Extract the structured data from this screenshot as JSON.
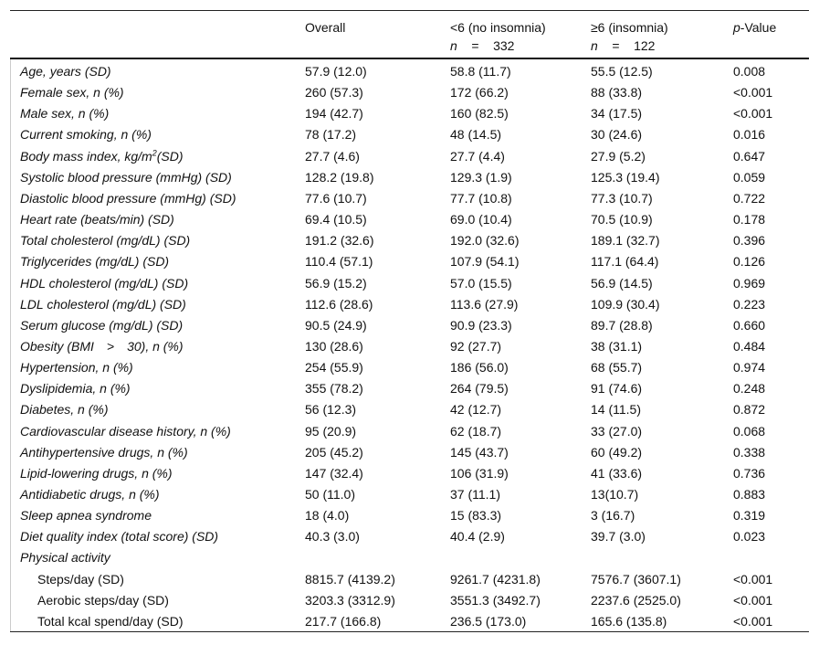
{
  "header": {
    "columns": [
      {
        "line1": "Overall",
        "line2": ""
      },
      {
        "line1": "<6 (no insomnia)",
        "n_label": "n",
        "eq": "=",
        "n_value": "332"
      },
      {
        "line1": "≥6 (insomnia)",
        "n_label": "n",
        "eq": "=",
        "n_value": "122"
      },
      {
        "line1_italic": "p",
        "line1": "-Value"
      }
    ]
  },
  "rows": [
    {
      "label": "Age, years (SD)",
      "values": [
        "57.9 (12.0)",
        "58.8 (11.7)",
        "55.5 (12.5)",
        "0.008"
      ]
    },
    {
      "label": "Female sex, n (%)",
      "values": [
        "260 (57.3)",
        "172 (66.2)",
        "88 (33.8)",
        "<0.001"
      ]
    },
    {
      "label": "Male sex, n (%)",
      "values": [
        "194 (42.7)",
        "160 (82.5)",
        "34 (17.5)",
        "<0.001"
      ]
    },
    {
      "label": "Current smoking, n (%)",
      "values": [
        "78 (17.2)",
        "48 (14.5)",
        "30 (24.6)",
        "0.016"
      ]
    },
    {
      "label": "Body mass index, kg/m",
      "sup": "2",
      "label_suffix": "(SD)",
      "values": [
        "27.7 (4.6)",
        "27.7 (4.4)",
        "27.9 (5.2)",
        "0.647"
      ]
    },
    {
      "label": "Systolic blood pressure (mmHg) (SD)",
      "values": [
        "128.2 (19.8)",
        "129.3 (1.9)",
        "125.3 (19.4)",
        "0.059"
      ]
    },
    {
      "label": "Diastolic blood pressure (mmHg) (SD)",
      "values": [
        "77.6 (10.7)",
        "77.7 (10.8)",
        "77.3 (10.7)",
        "0.722"
      ]
    },
    {
      "label": "Heart rate (beats/min) (SD)",
      "values": [
        "69.4 (10.5)",
        "69.0 (10.4)",
        "70.5 (10.9)",
        "0.178"
      ]
    },
    {
      "label": "Total cholesterol (mg/dL) (SD)",
      "values": [
        "191.2 (32.6)",
        "192.0 (32.6)",
        "189.1 (32.7)",
        "0.396"
      ]
    },
    {
      "label": "Triglycerides (mg/dL) (SD)",
      "values": [
        "110.4 (57.1)",
        "107.9 (54.1)",
        "117.1 (64.4)",
        "0.126"
      ]
    },
    {
      "label": "HDL cholesterol (mg/dL) (SD)",
      "values": [
        "56.9 (15.2)",
        "57.0 (15.5)",
        "56.9 (14.5)",
        "0.969"
      ]
    },
    {
      "label": "LDL cholesterol (mg/dL) (SD)",
      "values": [
        "112.6 (28.6)",
        "113.6 (27.9)",
        "109.9 (30.4)",
        "0.223"
      ]
    },
    {
      "label": "Serum glucose (mg/dL) (SD)",
      "values": [
        "90.5 (24.9)",
        "90.9 (23.3)",
        "89.7 (28.8)",
        "0.660"
      ]
    },
    {
      "label": "Obesity (BMI > 30), n (%)",
      "values": [
        "130 (28.6)",
        "92 (27.7)",
        "38 (31.1)",
        "0.484"
      ]
    },
    {
      "label": "Hypertension, n (%)",
      "values": [
        "254 (55.9)",
        "186 (56.0)",
        "68 (55.7)",
        "0.974"
      ]
    },
    {
      "label": "Dyslipidemia, n (%)",
      "values": [
        "355 (78.2)",
        "264 (79.5)",
        "91 (74.6)",
        "0.248"
      ]
    },
    {
      "label": "Diabetes, n (%)",
      "values": [
        "56 (12.3)",
        "42 (12.7)",
        "14 (11.5)",
        "0.872"
      ]
    },
    {
      "label": "Cardiovascular disease history, n (%)",
      "values": [
        "95 (20.9)",
        "62 (18.7)",
        "33 (27.0)",
        "0.068"
      ]
    },
    {
      "label": "Antihypertensive drugs, n (%)",
      "values": [
        "205 (45.2)",
        "145 (43.7)",
        "60 (49.2)",
        "0.338"
      ]
    },
    {
      "label": "Lipid-lowering drugs, n (%)",
      "values": [
        "147 (32.4)",
        "106 (31.9)",
        "41 (33.6)",
        "0.736"
      ]
    },
    {
      "label": "Antidiabetic drugs, n (%)",
      "values": [
        "50 (11.0)",
        "37 (11.1)",
        "13(10.7)",
        "0.883"
      ]
    },
    {
      "label": "Sleep apnea syndrome",
      "values": [
        "18 (4.0)",
        "15 (83.3)",
        "3 (16.7)",
        "0.319"
      ]
    },
    {
      "label": "Diet quality index (total score) (SD)",
      "values": [
        "40.3 (3.0)",
        "40.4 (2.9)",
        "39.7 (3.0)",
        "0.023"
      ]
    },
    {
      "label": "Physical activity",
      "values": []
    },
    {
      "label": "Steps/day (SD)",
      "sub": true,
      "values": [
        "8815.7 (4139.2)",
        "9261.7 (4231.8)",
        "7576.7 (3607.1)",
        "<0.001"
      ]
    },
    {
      "label": "Aerobic steps/day (SD)",
      "sub": true,
      "values": [
        "3203.3 (3312.9)",
        "3551.3 (3492.7)",
        "2237.6 (2525.0)",
        "<0.001"
      ]
    },
    {
      "label": "Total kcal spend/day (SD)",
      "sub": true,
      "values": [
        "217.7 (166.8)",
        "236.5 (173.0)",
        "165.6 (135.8)",
        "<0.001"
      ]
    }
  ]
}
